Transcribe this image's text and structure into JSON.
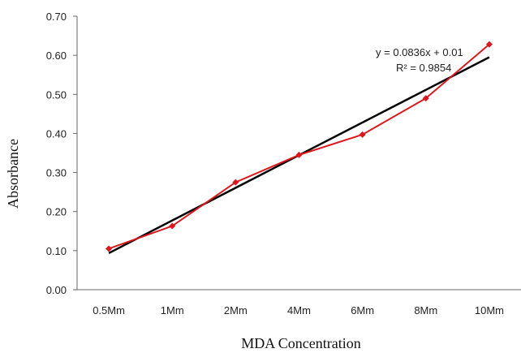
{
  "chart_data": {
    "type": "line",
    "categories": [
      "0.5Mm",
      "1Mm",
      "2Mm",
      "4Mm",
      "6Mm",
      "8Mm",
      "10Mm"
    ],
    "series": [
      {
        "values": [
          0.105,
          0.163,
          0.275,
          0.345,
          0.397,
          0.49,
          0.628
        ],
        "color": "#e0151b",
        "marker": "diamond"
      }
    ],
    "trendline": {
      "type": "linear",
      "slope": 0.0836,
      "intercept": 0.01,
      "equation": "y = 0.0836x + 0.01",
      "r_squared": "R² = 0.9854",
      "color": "#000000"
    },
    "xlabel": "MDA Concentration",
    "ylabel": "Absorbance",
    "ylim": [
      0,
      0.7
    ],
    "yticks": [
      "0.00",
      "0.10",
      "0.20",
      "0.30",
      "0.40",
      "0.50",
      "0.60",
      "0.70"
    ],
    "grid": false
  }
}
